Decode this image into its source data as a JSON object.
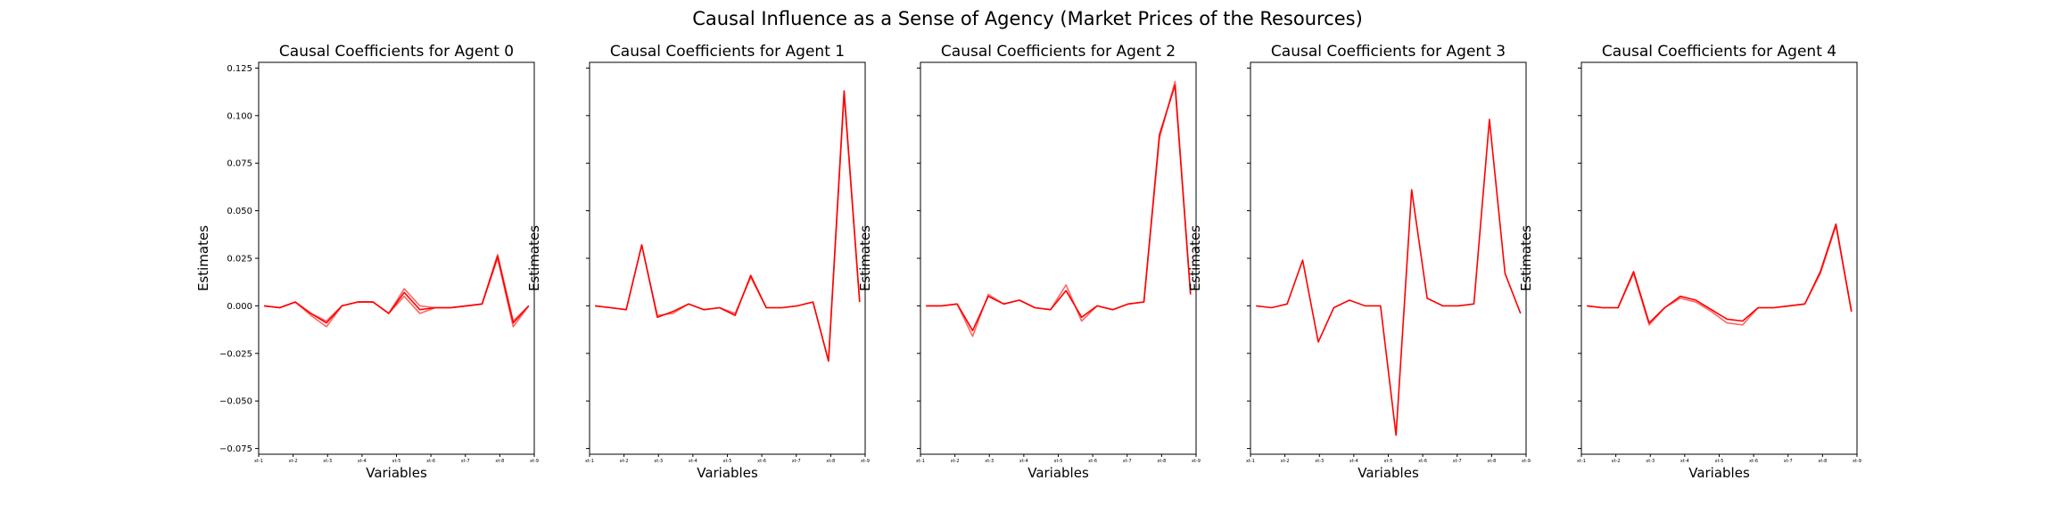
{
  "figure": {
    "suptitle": "Causal Influence as a Sense of Agency (Market Prices of the Resources)"
  },
  "chart_data": [
    {
      "type": "line",
      "title": "Causal Coefficients for Agent 0",
      "xlabel": "Variables",
      "ylabel": "Estimates",
      "ylim": [
        -0.078,
        0.128
      ],
      "yticks": [
        -0.075,
        -0.05,
        -0.025,
        0.0,
        0.025,
        0.05,
        0.075,
        0.1,
        0.125
      ],
      "ytick_labels": [
        "−0.075",
        "−0.050",
        "−0.025",
        "0.000",
        "0.025",
        "0.050",
        "0.075",
        "0.100",
        "0.125"
      ],
      "xtick_labels": [
        "xt-1",
        "xt-2",
        "xt-3",
        "xt-4",
        "xt-5",
        "xt-6",
        "xt-7",
        "xt-8",
        "xt-9"
      ],
      "color": "#ff0000",
      "series": [
        {
          "values": [
            0.0,
            -0.001,
            0.002,
            -0.004,
            -0.009,
            0.0,
            0.002,
            0.002,
            -0.004,
            0.007,
            -0.002,
            -0.001,
            -0.001,
            0.0,
            0.001,
            0.026,
            -0.009,
            0.0
          ]
        },
        {
          "values": [
            0.0,
            -0.001,
            0.002,
            -0.005,
            -0.011,
            0.0,
            0.002,
            0.002,
            -0.004,
            0.009,
            0.0,
            -0.001,
            -0.001,
            0.0,
            0.001,
            0.025,
            -0.011,
            0.0
          ]
        },
        {
          "values": [
            0.0,
            -0.001,
            0.002,
            -0.004,
            -0.008,
            0.0,
            0.002,
            0.002,
            -0.004,
            0.005,
            -0.004,
            -0.001,
            -0.001,
            0.0,
            0.001,
            0.027,
            -0.008,
            0.0
          ]
        }
      ]
    },
    {
      "type": "line",
      "title": "Causal Coefficients for Agent 1",
      "xlabel": "Variables",
      "ylabel": "Estimates",
      "ylim": [
        -0.078,
        0.128
      ],
      "yticks": [
        -0.075,
        -0.05,
        -0.025,
        0.0,
        0.025,
        0.05,
        0.075,
        0.1,
        0.125
      ],
      "ytick_labels": [
        "",
        "",
        "",
        "",
        "",
        "",
        "",
        "",
        ""
      ],
      "xtick_labels": [
        "xt-1",
        "xt-2",
        "xt-3",
        "xt-4",
        "xt-5",
        "xt-6",
        "xt-7",
        "xt-8",
        "xt-9"
      ],
      "color": "#ff0000",
      "series": [
        {
          "values": [
            0.0,
            -0.001,
            -0.002,
            0.032,
            -0.006,
            -0.003,
            0.001,
            -0.002,
            -0.001,
            -0.005,
            0.016,
            -0.001,
            -0.001,
            0.0,
            0.002,
            -0.029,
            0.113,
            0.002
          ]
        },
        {
          "values": [
            0.0,
            -0.001,
            -0.002,
            0.032,
            -0.005,
            -0.004,
            0.001,
            -0.002,
            -0.001,
            -0.004,
            0.015,
            -0.001,
            -0.001,
            0.0,
            0.002,
            -0.029,
            0.111,
            0.002
          ]
        }
      ]
    },
    {
      "type": "line",
      "title": "Causal Coefficients for Agent 2",
      "xlabel": "Variables",
      "ylabel": "Estimates",
      "ylim": [
        -0.078,
        0.128
      ],
      "yticks": [
        -0.075,
        -0.05,
        -0.025,
        0.0,
        0.025,
        0.05,
        0.075,
        0.1,
        0.125
      ],
      "ytick_labels": [
        "",
        "",
        "",
        "",
        "",
        "",
        "",
        "",
        ""
      ],
      "xtick_labels": [
        "xt-1",
        "xt-2",
        "xt-3",
        "xt-4",
        "xt-5",
        "xt-6",
        "xt-7",
        "xt-8",
        "xt-9"
      ],
      "color": "#ff0000",
      "series": [
        {
          "values": [
            0.0,
            0.0,
            0.001,
            -0.013,
            0.005,
            0.001,
            0.003,
            -0.001,
            -0.002,
            0.008,
            -0.006,
            0.0,
            -0.002,
            0.001,
            0.002,
            0.09,
            0.116,
            0.006
          ]
        },
        {
          "values": [
            0.0,
            0.0,
            0.001,
            -0.016,
            0.006,
            0.001,
            0.003,
            -0.001,
            -0.002,
            0.011,
            -0.008,
            0.0,
            -0.002,
            0.001,
            0.002,
            0.088,
            0.118,
            0.006
          ]
        }
      ]
    },
    {
      "type": "line",
      "title": "Causal Coefficients for Agent 3",
      "xlabel": "Variables",
      "ylabel": "Estimates",
      "ylim": [
        -0.078,
        0.128
      ],
      "yticks": [
        -0.075,
        -0.05,
        -0.025,
        0.0,
        0.025,
        0.05,
        0.075,
        0.1,
        0.125
      ],
      "ytick_labels": [
        "",
        "",
        "",
        "",
        "",
        "",
        "",
        "",
        ""
      ],
      "xtick_labels": [
        "xt-1",
        "xt-2",
        "xt-3",
        "xt-4",
        "xt-5",
        "xt-6",
        "xt-7",
        "xt-8",
        "xt-9"
      ],
      "color": "#ff0000",
      "series": [
        {
          "values": [
            0.0,
            -0.001,
            0.001,
            0.024,
            -0.019,
            -0.001,
            0.003,
            0.0,
            0.0,
            -0.068,
            0.061,
            0.004,
            0.0,
            0.0,
            0.001,
            0.098,
            0.017,
            -0.004
          ]
        }
      ]
    },
    {
      "type": "line",
      "title": "Causal Coefficients for Agent 4",
      "xlabel": "Variables",
      "ylabel": "Estimates",
      "ylim": [
        -0.078,
        0.128
      ],
      "yticks": [
        -0.075,
        -0.05,
        -0.025,
        0.0,
        0.025,
        0.05,
        0.075,
        0.1,
        0.125
      ],
      "ytick_labels": [
        "",
        "",
        "",
        "",
        "",
        "",
        "",
        "",
        ""
      ],
      "xtick_labels": [
        "xt-1",
        "xt-2",
        "xt-3",
        "xt-4",
        "xt-5",
        "xt-6",
        "xt-7",
        "xt-8",
        "xt-9"
      ],
      "color": "#ff0000",
      "series": [
        {
          "values": [
            0.0,
            -0.001,
            -0.001,
            0.018,
            -0.009,
            -0.001,
            0.005,
            0.003,
            -0.002,
            -0.007,
            -0.008,
            -0.001,
            -0.001,
            0.0,
            0.001,
            0.018,
            0.043,
            -0.003
          ]
        },
        {
          "values": [
            0.0,
            -0.001,
            -0.001,
            0.017,
            -0.01,
            -0.001,
            0.004,
            0.002,
            -0.003,
            -0.009,
            -0.01,
            -0.001,
            -0.001,
            0.0,
            0.001,
            0.017,
            0.042,
            -0.003
          ]
        }
      ]
    }
  ]
}
